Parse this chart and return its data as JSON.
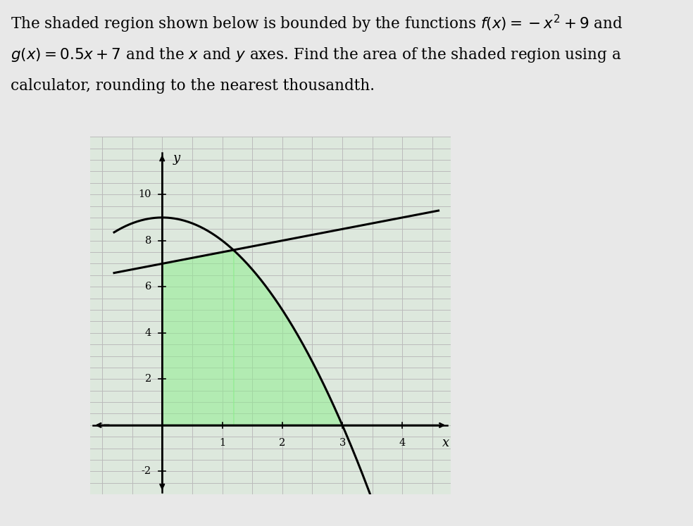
{
  "xlim": [
    -1.2,
    4.8
  ],
  "ylim": [
    -3.0,
    12.0
  ],
  "xticks": [
    1,
    2,
    3,
    4
  ],
  "yticks": [
    -2,
    2,
    4,
    6,
    8,
    10
  ],
  "xlabel": "x",
  "ylabel": "y",
  "f_color": "#000000",
  "g_color": "#000000",
  "shade_color": "#90EE90",
  "shade_alpha": 0.55,
  "background_color": "#f0f0f0",
  "grid_color": "#bbbbbb",
  "grid_lw": 0.7,
  "curve_lw": 2.2,
  "title_fontsize": 15.5,
  "axis_label_fontsize": 13,
  "tick_fontsize": 10.5
}
